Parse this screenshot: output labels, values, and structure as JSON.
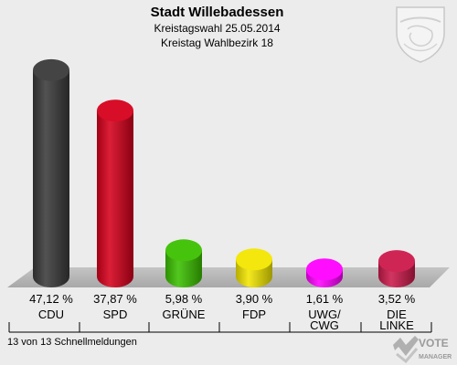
{
  "header": {
    "title": "Stadt Willebadessen",
    "subtitle": "Kreistagswahl 25.05.2014",
    "subtitle2": "Kreistag Wahlbezirk 18"
  },
  "footer": {
    "status": "13 von 13 Schnellmeldungen",
    "logo_text_1": "VOTE",
    "logo_text_2": "MANAGER"
  },
  "chart_data": {
    "type": "bar",
    "categories": [
      "CDU",
      "SPD",
      "GRÜNE",
      "FDP",
      "UWG/ CWG",
      "DIE LINKE"
    ],
    "category_lines": [
      [
        "CDU"
      ],
      [
        "SPD"
      ],
      [
        "GRÜNE"
      ],
      [
        "FDP"
      ],
      [
        "UWG/",
        "CWG"
      ],
      [
        "DIE",
        "LINKE"
      ]
    ],
    "values": [
      47.12,
      37.87,
      5.98,
      3.9,
      1.61,
      3.52
    ],
    "value_labels": [
      "47,12 %",
      "37,87 %",
      "5,98 %",
      "3,90 %",
      "1,61 %",
      "3,52 %"
    ],
    "colors": [
      "#3a3a3a",
      "#d6001c",
      "#3cc000",
      "#f2e600",
      "#ff00ff",
      "#cc1a4c"
    ],
    "ylim": [
      0,
      50
    ]
  }
}
